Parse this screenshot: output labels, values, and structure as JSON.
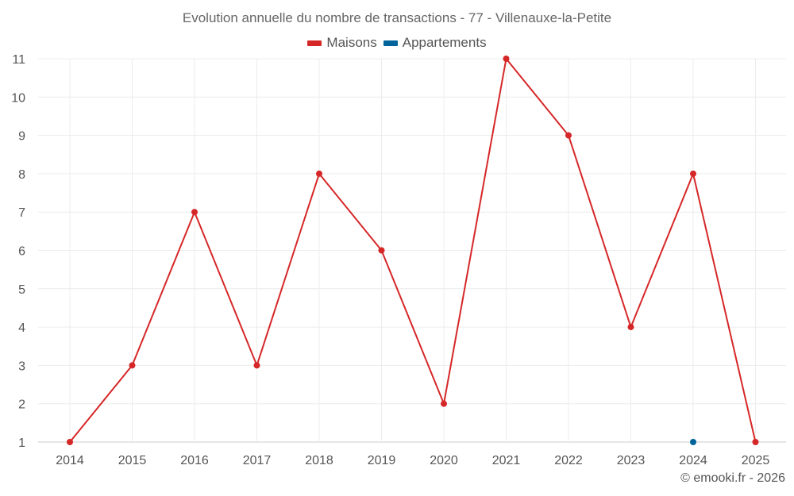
{
  "chart_data": {
    "type": "line",
    "title": "Evolution annuelle du nombre de transactions - 77 - Villenauxe-la-Petite",
    "categories": [
      "2014",
      "2015",
      "2016",
      "2017",
      "2018",
      "2019",
      "2020",
      "2021",
      "2022",
      "2023",
      "2024",
      "2025"
    ],
    "series": [
      {
        "name": "Maisons",
        "color": "#d62728",
        "values": [
          1,
          3,
          7,
          3,
          8,
          6,
          2,
          11,
          9,
          4,
          8,
          1
        ]
      },
      {
        "name": "Appartements",
        "color": "#00649b",
        "values": [
          null,
          null,
          null,
          null,
          null,
          null,
          null,
          null,
          null,
          null,
          1,
          null
        ]
      }
    ],
    "ylim": [
      1,
      11
    ],
    "yticks": [
      1,
      2,
      3,
      4,
      5,
      6,
      7,
      8,
      9,
      10,
      11
    ],
    "xlabel": "",
    "ylabel": "",
    "grid": true,
    "legend_position": "top-center"
  },
  "credit": "© emooki.fr - 2026"
}
